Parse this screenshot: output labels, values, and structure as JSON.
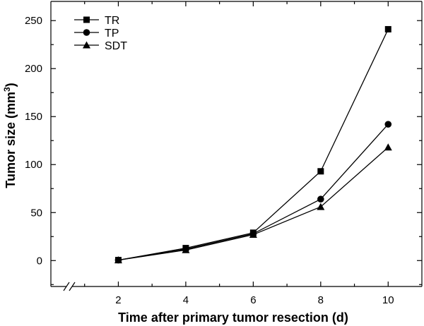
{
  "chart_data": {
    "type": "line",
    "title": "",
    "xlabel": "Time after primary tumor resection (d)",
    "ylabel_main": "Tumor size (mm",
    "ylabel_sup": "3",
    "ylabel_close": ")",
    "x": [
      2,
      4,
      6,
      8,
      10
    ],
    "x_ticks": [
      2,
      4,
      6,
      8,
      10
    ],
    "y_ticks": [
      0,
      50,
      100,
      150,
      200,
      250
    ],
    "xlim": [
      0,
      11
    ],
    "ylim": [
      -27,
      270
    ],
    "axis_break_on_x": true,
    "legend_position": "top-left",
    "series": [
      {
        "name": "TR",
        "marker": "square",
        "values": [
          0.5,
          13,
          29,
          93,
          241
        ]
      },
      {
        "name": "TP",
        "marker": "circle",
        "values": [
          0.5,
          12,
          28,
          64,
          142
        ]
      },
      {
        "name": "SDT",
        "marker": "triangle",
        "values": [
          0.5,
          11,
          27,
          56,
          118
        ]
      }
    ],
    "line_color": "#000000"
  }
}
